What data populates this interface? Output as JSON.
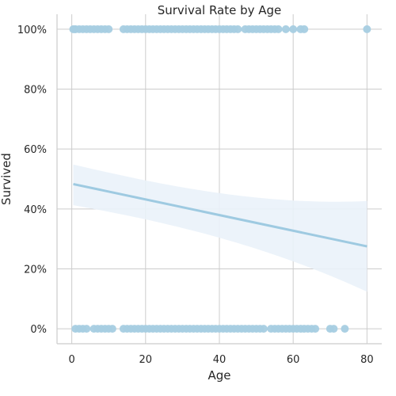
{
  "chart_data": {
    "type": "scatter",
    "title": "Survival Rate by Age",
    "xlabel": "Age",
    "ylabel": "Survived",
    "xlim": [
      -4,
      84
    ],
    "ylim": [
      -0.05,
      1.05
    ],
    "x_ticks": [
      0,
      20,
      40,
      60,
      80
    ],
    "x_tick_labels": [
      "0",
      "20",
      "40",
      "60",
      "80"
    ],
    "y_ticks": [
      0,
      0.2,
      0.4,
      0.6,
      0.8,
      1.0
    ],
    "y_tick_labels": [
      "0%",
      "20%",
      "40%",
      "60%",
      "80%",
      "100%"
    ],
    "grid": true,
    "colors": {
      "points": "#a6cde2",
      "line": "#9ecae1",
      "band": "#eaf2fa",
      "grid": "#cccccc",
      "axis": "#cccccc"
    },
    "series": [
      {
        "values_x": [
          0.4,
          0.8,
          1,
          2,
          3,
          4,
          5,
          6,
          7,
          8,
          9,
          10,
          14,
          15,
          16,
          17,
          18,
          19,
          20,
          21,
          22,
          23,
          24,
          25,
          26,
          27,
          28,
          29,
          30,
          31,
          32,
          33,
          34,
          35,
          36,
          37,
          38,
          39,
          40,
          41,
          42,
          43,
          44,
          45,
          47,
          48,
          49,
          50,
          51,
          52,
          53,
          54,
          55,
          56,
          58,
          60,
          62,
          63,
          80
        ],
        "values_y": [
          1,
          1,
          1,
          1,
          1,
          1,
          1,
          1,
          1,
          1,
          1,
          1,
          1,
          1,
          1,
          1,
          1,
          1,
          1,
          1,
          1,
          1,
          1,
          1,
          1,
          1,
          1,
          1,
          1,
          1,
          1,
          1,
          1,
          1,
          1,
          1,
          1,
          1,
          1,
          1,
          1,
          1,
          1,
          1,
          1,
          1,
          1,
          1,
          1,
          1,
          1,
          1,
          1,
          1,
          1,
          1,
          1,
          1,
          1
        ]
      },
      {
        "values_x": [
          1,
          2,
          3,
          4,
          6,
          7,
          8,
          9,
          10,
          11,
          14,
          15,
          16,
          17,
          18,
          19,
          20,
          21,
          22,
          23,
          24,
          25,
          26,
          27,
          28,
          29,
          30,
          31,
          32,
          33,
          34,
          35,
          36,
          37,
          38,
          39,
          40,
          41,
          42,
          43,
          44,
          45,
          46,
          47,
          48,
          49,
          50,
          51,
          52,
          54,
          55,
          56,
          57,
          58,
          59,
          60,
          61,
          62,
          63,
          64,
          65,
          66,
          70,
          71,
          74
        ],
        "values_y": [
          0,
          0,
          0,
          0,
          0,
          0,
          0,
          0,
          0,
          0,
          0,
          0,
          0,
          0,
          0,
          0,
          0,
          0,
          0,
          0,
          0,
          0,
          0,
          0,
          0,
          0,
          0,
          0,
          0,
          0,
          0,
          0,
          0,
          0,
          0,
          0,
          0,
          0,
          0,
          0,
          0,
          0,
          0,
          0,
          0,
          0,
          0,
          0,
          0,
          0,
          0,
          0,
          0,
          0,
          0,
          0,
          0,
          0,
          0,
          0,
          0,
          0,
          0,
          0,
          0
        ]
      }
    ],
    "regression": {
      "x": [
        0.4,
        80
      ],
      "y": [
        0.483,
        0.275
      ],
      "ci_lower": [
        0.4,
        0.15
      ],
      "ci_upper": [
        0.56,
        0.4
      ]
    }
  }
}
